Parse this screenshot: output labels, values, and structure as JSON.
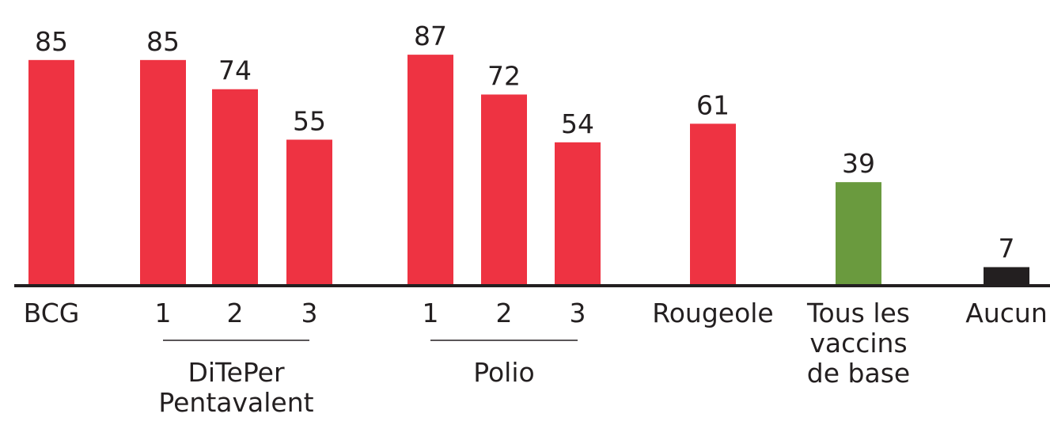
{
  "chart_data": {
    "type": "bar",
    "title": "",
    "xlabel": "",
    "ylabel": "",
    "ylim": [
      0,
      90
    ],
    "grid": false,
    "legend": "none",
    "bars": [
      {
        "label": "BCG",
        "value": 85,
        "color": "#ee3342"
      },
      {
        "label": "1",
        "value": 85,
        "color": "#ee3342"
      },
      {
        "label": "2",
        "value": 74,
        "color": "#ee3342"
      },
      {
        "label": "3",
        "value": 55,
        "color": "#ee3342"
      },
      {
        "label": "1",
        "value": 87,
        "color": "#ee3342"
      },
      {
        "label": "2",
        "value": 72,
        "color": "#ee3342"
      },
      {
        "label": "3",
        "value": 54,
        "color": "#ee3342"
      },
      {
        "label": "Rougeole",
        "value": 61,
        "color": "#ee3342"
      },
      {
        "label": "Tous les vaccins de base",
        "value": 39,
        "color": "#6a9a3e"
      },
      {
        "label": "Aucun",
        "value": 7,
        "color": "#231f20"
      }
    ],
    "groups": [
      {
        "label": "DiTePer Pentavalent",
        "bars": [
          1,
          2,
          3
        ]
      },
      {
        "label": "Polio",
        "bars": [
          4,
          5,
          6
        ]
      }
    ],
    "colors": {
      "axis": "#231f20",
      "text": "#231f20"
    }
  }
}
